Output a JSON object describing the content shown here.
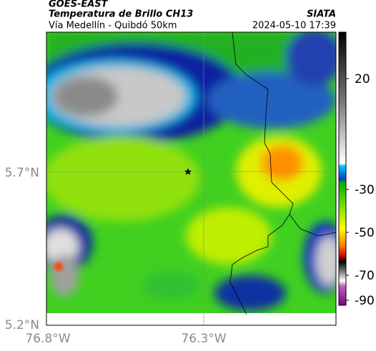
{
  "header": {
    "title": "GOES-EAST",
    "subtitle": "Temperatura de Brillo CH13",
    "location": "Vía Medellín - Quibdó 50km",
    "source": "SIATA",
    "datetime": "2024-05-10 17:39"
  },
  "map": {
    "lat_ticks": [
      "5.7°N",
      "5.2°N"
    ],
    "lon_ticks": [
      "76.8°W",
      "76.3°W"
    ]
  },
  "colorbar": {
    "ticks": [
      20,
      -30,
      -50,
      -70,
      -90
    ]
  }
}
